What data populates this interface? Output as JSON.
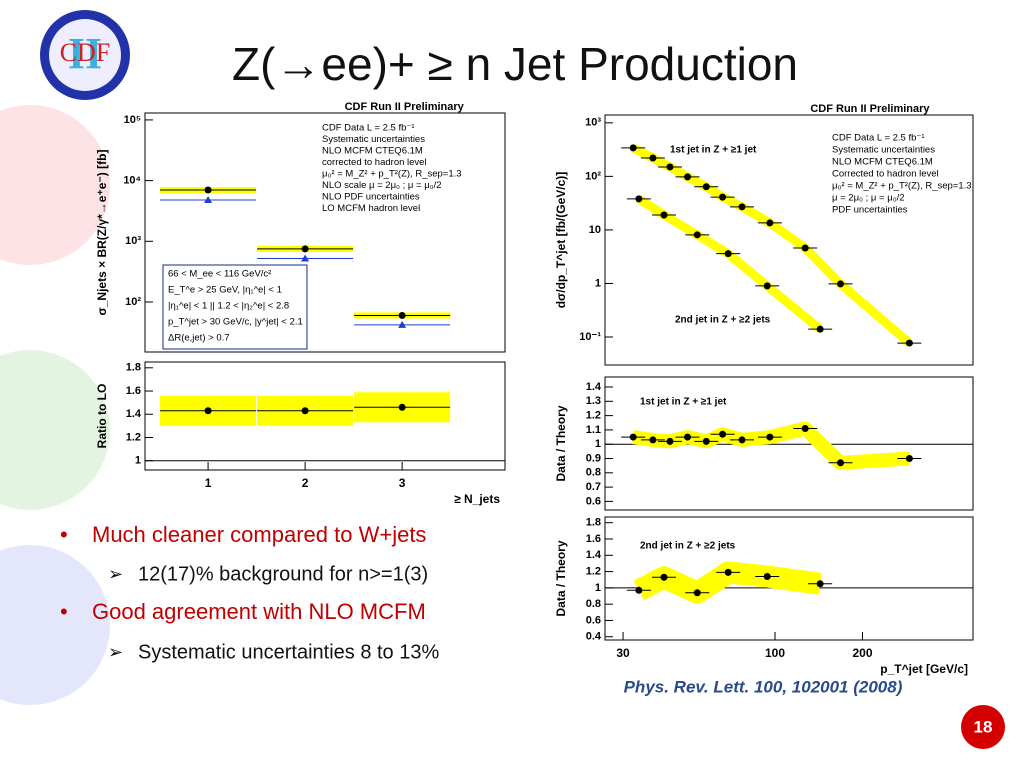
{
  "slide": {
    "logo": {
      "top": "CDF",
      "numeral": "II"
    },
    "title": "Z(→ee)+ ≥ n Jet Production",
    "bullets": [
      {
        "text": "Much cleaner compared to W+jets",
        "sub": "12(17)% background for n>=1(3)"
      },
      {
        "text": "Good agreement with NLO MCFM",
        "sub": "Systematic uncertainties 8 to 13%"
      }
    ],
    "citation": "Phys. Rev. Lett. 100, 102001 (2008)",
    "page_number": "18"
  },
  "chart_data": [
    {
      "type": "scatter",
      "title": "CDF Run II Preliminary",
      "ylabel": "σ_Njets × BR(Z/γ*→e⁺e⁻) [fb]",
      "ylog": true,
      "xlim": [
        0.35,
        4.06
      ],
      "ylim": [
        15,
        130000
      ],
      "yticks": [
        {
          "value": 100,
          "label": "10²"
        },
        {
          "value": 1000,
          "label": "10³"
        },
        {
          "value": 10000,
          "label": "10⁴"
        },
        {
          "value": 100000,
          "label": "10⁵"
        }
      ],
      "series": [
        {
          "name": "CDF Data  L = 2.5 fb⁻¹",
          "color": "#000000",
          "marker": "circle",
          "band": "#ffff00",
          "x": [
            1,
            2,
            3
          ],
          "values": [
            7000,
            750,
            60
          ]
        },
        {
          "name": "LO MCFM hadron level",
          "color": "#1f3fd0",
          "marker": "triangle",
          "x": [
            1,
            2,
            3
          ],
          "values": [
            4800,
            520,
            42
          ]
        }
      ],
      "legend": [
        "CDF Data  L = 2.5 fb⁻¹",
        "Systematic uncertainties",
        "NLO MCFM CTEQ6.1M",
        "corrected to hadron level",
        "μ₀² = M_Z² + p_T²(Z), R_sep=1.3",
        "NLO scale μ = 2μ₀ ; μ = μ₀/2",
        "NLO PDF uncertainties",
        "LO MCFM hadron level"
      ],
      "notes": [
        "66 < M_ee < 116 GeV/c²",
        "E_T^e > 25 GeV, |η₁^e| < 1",
        "|η₁^e| < 1  ||  1.2 < |η₂^e| < 2.8",
        "p_T^jet > 30 GeV/c, |y^jet| < 2.1",
        "ΔR(e,jet) > 0.7"
      ]
    },
    {
      "type": "scatter",
      "ylabel": "Ratio to LO",
      "xlabel": "≥ N_jets",
      "xlim": [
        0.35,
        4.06
      ],
      "ylim": [
        0.92,
        1.85
      ],
      "xticks": [
        1,
        2,
        3
      ],
      "yticks": [
        1,
        1.2,
        1.4,
        1.6,
        1.8
      ],
      "hline": 1,
      "series": [
        {
          "name": "CDF Data",
          "color": "#000000",
          "marker": "circle",
          "band": "#ffff00",
          "x": [
            1,
            2,
            3
          ],
          "values": [
            1.43,
            1.43,
            1.46
          ]
        }
      ]
    },
    {
      "type": "scatter",
      "title": "CDF Run II Preliminary",
      "ylabel": "dσ/dp_T^jet [fb/(GeV/c)]",
      "xlog": true,
      "ylog": true,
      "xlim": [
        26,
        480
      ],
      "ylim": [
        0.03,
        1400
      ],
      "yticks": [
        {
          "value": 0.1,
          "label": "10⁻¹"
        },
        1,
        10,
        {
          "value": 100,
          "label": "10²"
        },
        {
          "value": 1000,
          "label": "10³"
        }
      ],
      "series": [
        {
          "name": "1st jet in Z + ≥1 jet",
          "color": "#000000",
          "marker": "circle",
          "band": "#ffff00",
          "x": [
            32.5,
            38,
            43.5,
            50,
            58,
            66,
            77,
            96,
            127,
            168,
            290
          ],
          "values": [
            340,
            220,
            150,
            98,
            64,
            41,
            27,
            13.5,
            4.6,
            0.98,
            0.077
          ]
        },
        {
          "name": "2nd jet in Z + ≥2 jets",
          "color": "#000000",
          "marker": "circle",
          "band": "#ffff00",
          "x": [
            34,
            41.5,
            54,
            69,
            94,
            143
          ],
          "values": [
            38,
            19,
            8.1,
            3.6,
            0.9,
            0.14
          ]
        }
      ],
      "legend": [
        "CDF Data  L = 2.5 fb⁻¹",
        "Systematic uncertainties",
        "NLO MCFM CTEQ6.1M",
        "Corrected to hadron level",
        "μ₀² = M_Z² + p_T²(Z), R_sep=1.3",
        "μ = 2μ₀ ; μ = μ₀/2",
        "PDF uncertainties"
      ]
    },
    {
      "type": "scatter",
      "ylabel": "Data / Theory",
      "xlog": true,
      "xlim": [
        26,
        480
      ],
      "ylim": [
        0.54,
        1.47
      ],
      "yticks": [
        0.6,
        0.7,
        0.8,
        0.9,
        1,
        1.1,
        1.2,
        1.3,
        1.4
      ],
      "hline": 1,
      "annotation": "1st jet in Z + ≥1 jet",
      "series": [
        {
          "name": "1st jet in Z + ≥1 jet",
          "color": "#000000",
          "marker": "circle",
          "band": "#ffff00",
          "x": [
            32.5,
            38,
            43.5,
            50,
            58,
            66,
            77,
            96,
            127,
            168,
            290
          ],
          "values": [
            1.05,
            1.03,
            1.02,
            1.05,
            1.02,
            1.07,
            1.03,
            1.05,
            1.11,
            0.87,
            0.9
          ]
        }
      ]
    },
    {
      "type": "scatter",
      "ylabel": "Data / Theory",
      "xlabel": "p_T^jet  [GeV/c]",
      "xlog": true,
      "xlim": [
        26,
        480
      ],
      "ylim": [
        0.36,
        1.87
      ],
      "xticks": [
        30,
        100,
        200
      ],
      "yticks": [
        0.4,
        0.6,
        0.8,
        1,
        1.2,
        1.4,
        1.6,
        1.8
      ],
      "hline": 1,
      "annotation": "2nd jet in Z + ≥2 jets",
      "series": [
        {
          "name": "2nd jet in Z + ≥2 jets",
          "color": "#000000",
          "marker": "circle",
          "band": "#ffff00",
          "x": [
            34,
            41.5,
            54,
            69,
            94,
            143
          ],
          "values": [
            0.97,
            1.13,
            0.94,
            1.19,
            1.14,
            1.05
          ]
        }
      ]
    }
  ]
}
